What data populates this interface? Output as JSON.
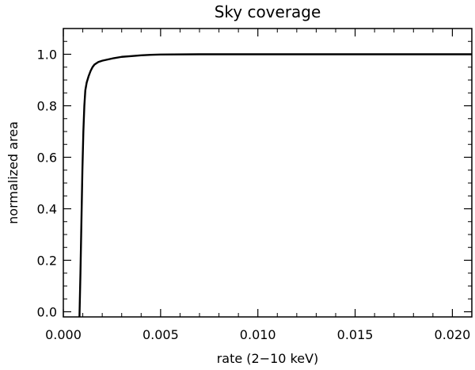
{
  "chart_data": {
    "type": "line",
    "title": "Sky coverage",
    "xlabel": "rate (2−10 keV)",
    "ylabel": "normalized area",
    "xlim": [
      0.0,
      0.021
    ],
    "ylim": [
      -0.02,
      1.1
    ],
    "grid": false,
    "legend": "none",
    "x_ticks": [
      0.0,
      0.005,
      0.01,
      0.015,
      0.02
    ],
    "x_tick_labels": [
      "0.000",
      "0.005",
      "0.010",
      "0.015",
      "0.020"
    ],
    "y_ticks": [
      0.0,
      0.2,
      0.4,
      0.6,
      0.8,
      1.0
    ],
    "y_tick_labels": [
      "0.0",
      "0.2",
      "0.4",
      "0.6",
      "0.8",
      "1.0"
    ],
    "line_color": "#000000",
    "series": [
      {
        "x": [
          0.00083,
          0.00088,
          0.00093,
          0.00098,
          0.00103,
          0.00108,
          0.00113,
          0.0012,
          0.0013,
          0.0014,
          0.0015,
          0.0016,
          0.0018,
          0.002,
          0.0023,
          0.0026,
          0.003,
          0.0035,
          0.004,
          0.0045,
          0.005,
          0.007,
          0.01,
          0.015,
          0.021
        ],
        "y": [
          -0.02,
          0.15,
          0.35,
          0.55,
          0.7,
          0.8,
          0.86,
          0.89,
          0.915,
          0.935,
          0.95,
          0.96,
          0.97,
          0.975,
          0.98,
          0.985,
          0.99,
          0.993,
          0.996,
          0.998,
          0.999,
          1.0,
          1.0,
          1.0,
          1.0
        ]
      }
    ]
  }
}
